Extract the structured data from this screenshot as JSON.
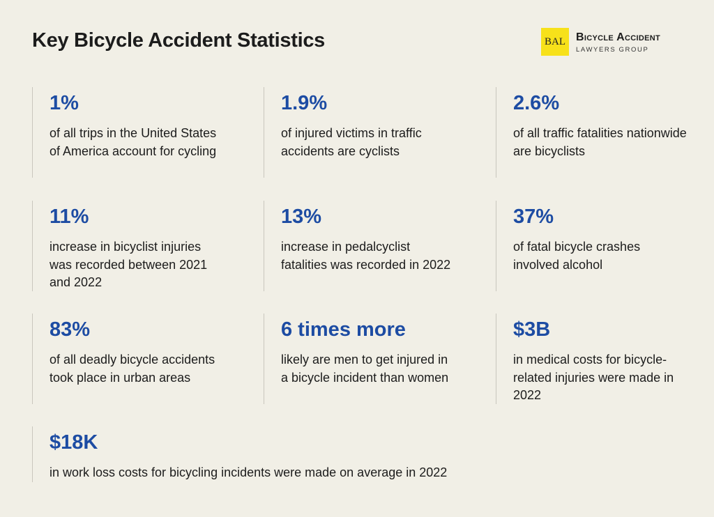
{
  "header": {
    "title": "Key Bicycle Accident Statistics",
    "logo": {
      "mark": "BAL",
      "name": "Bicycle Accident",
      "subtitle": "LAWYERS GROUP"
    }
  },
  "stats": [
    {
      "value": "1%",
      "text": "of all trips in the United States of America account for cycling"
    },
    {
      "value": "1.9%",
      "text": "of injured victims in traffic accidents are cyclists"
    },
    {
      "value": "2.6%",
      "text": "of all traffic fatalities nationwide are bicyclists"
    },
    {
      "value": "11%",
      "text": "increase in bicyclist injuries was recorded between 2021 and 2022"
    },
    {
      "value": "13%",
      "text": "increase in pedalcyclist fatalities was recorded in 2022"
    },
    {
      "value": "37%",
      "text": "of fatal bicycle crashes involved alcohol"
    },
    {
      "value": "83%",
      "text": "of all deadly bicycle accidents took place in urban areas"
    },
    {
      "value": "6 times more",
      "text": "likely are men to get injured in a bicycle incident than women"
    },
    {
      "value": "$3B",
      "text": "in medical costs for bicycle-related injuries were made in 2022"
    },
    {
      "value": "$18K",
      "text": "in work loss costs for bicycling incidents were made on average in 2022"
    }
  ]
}
